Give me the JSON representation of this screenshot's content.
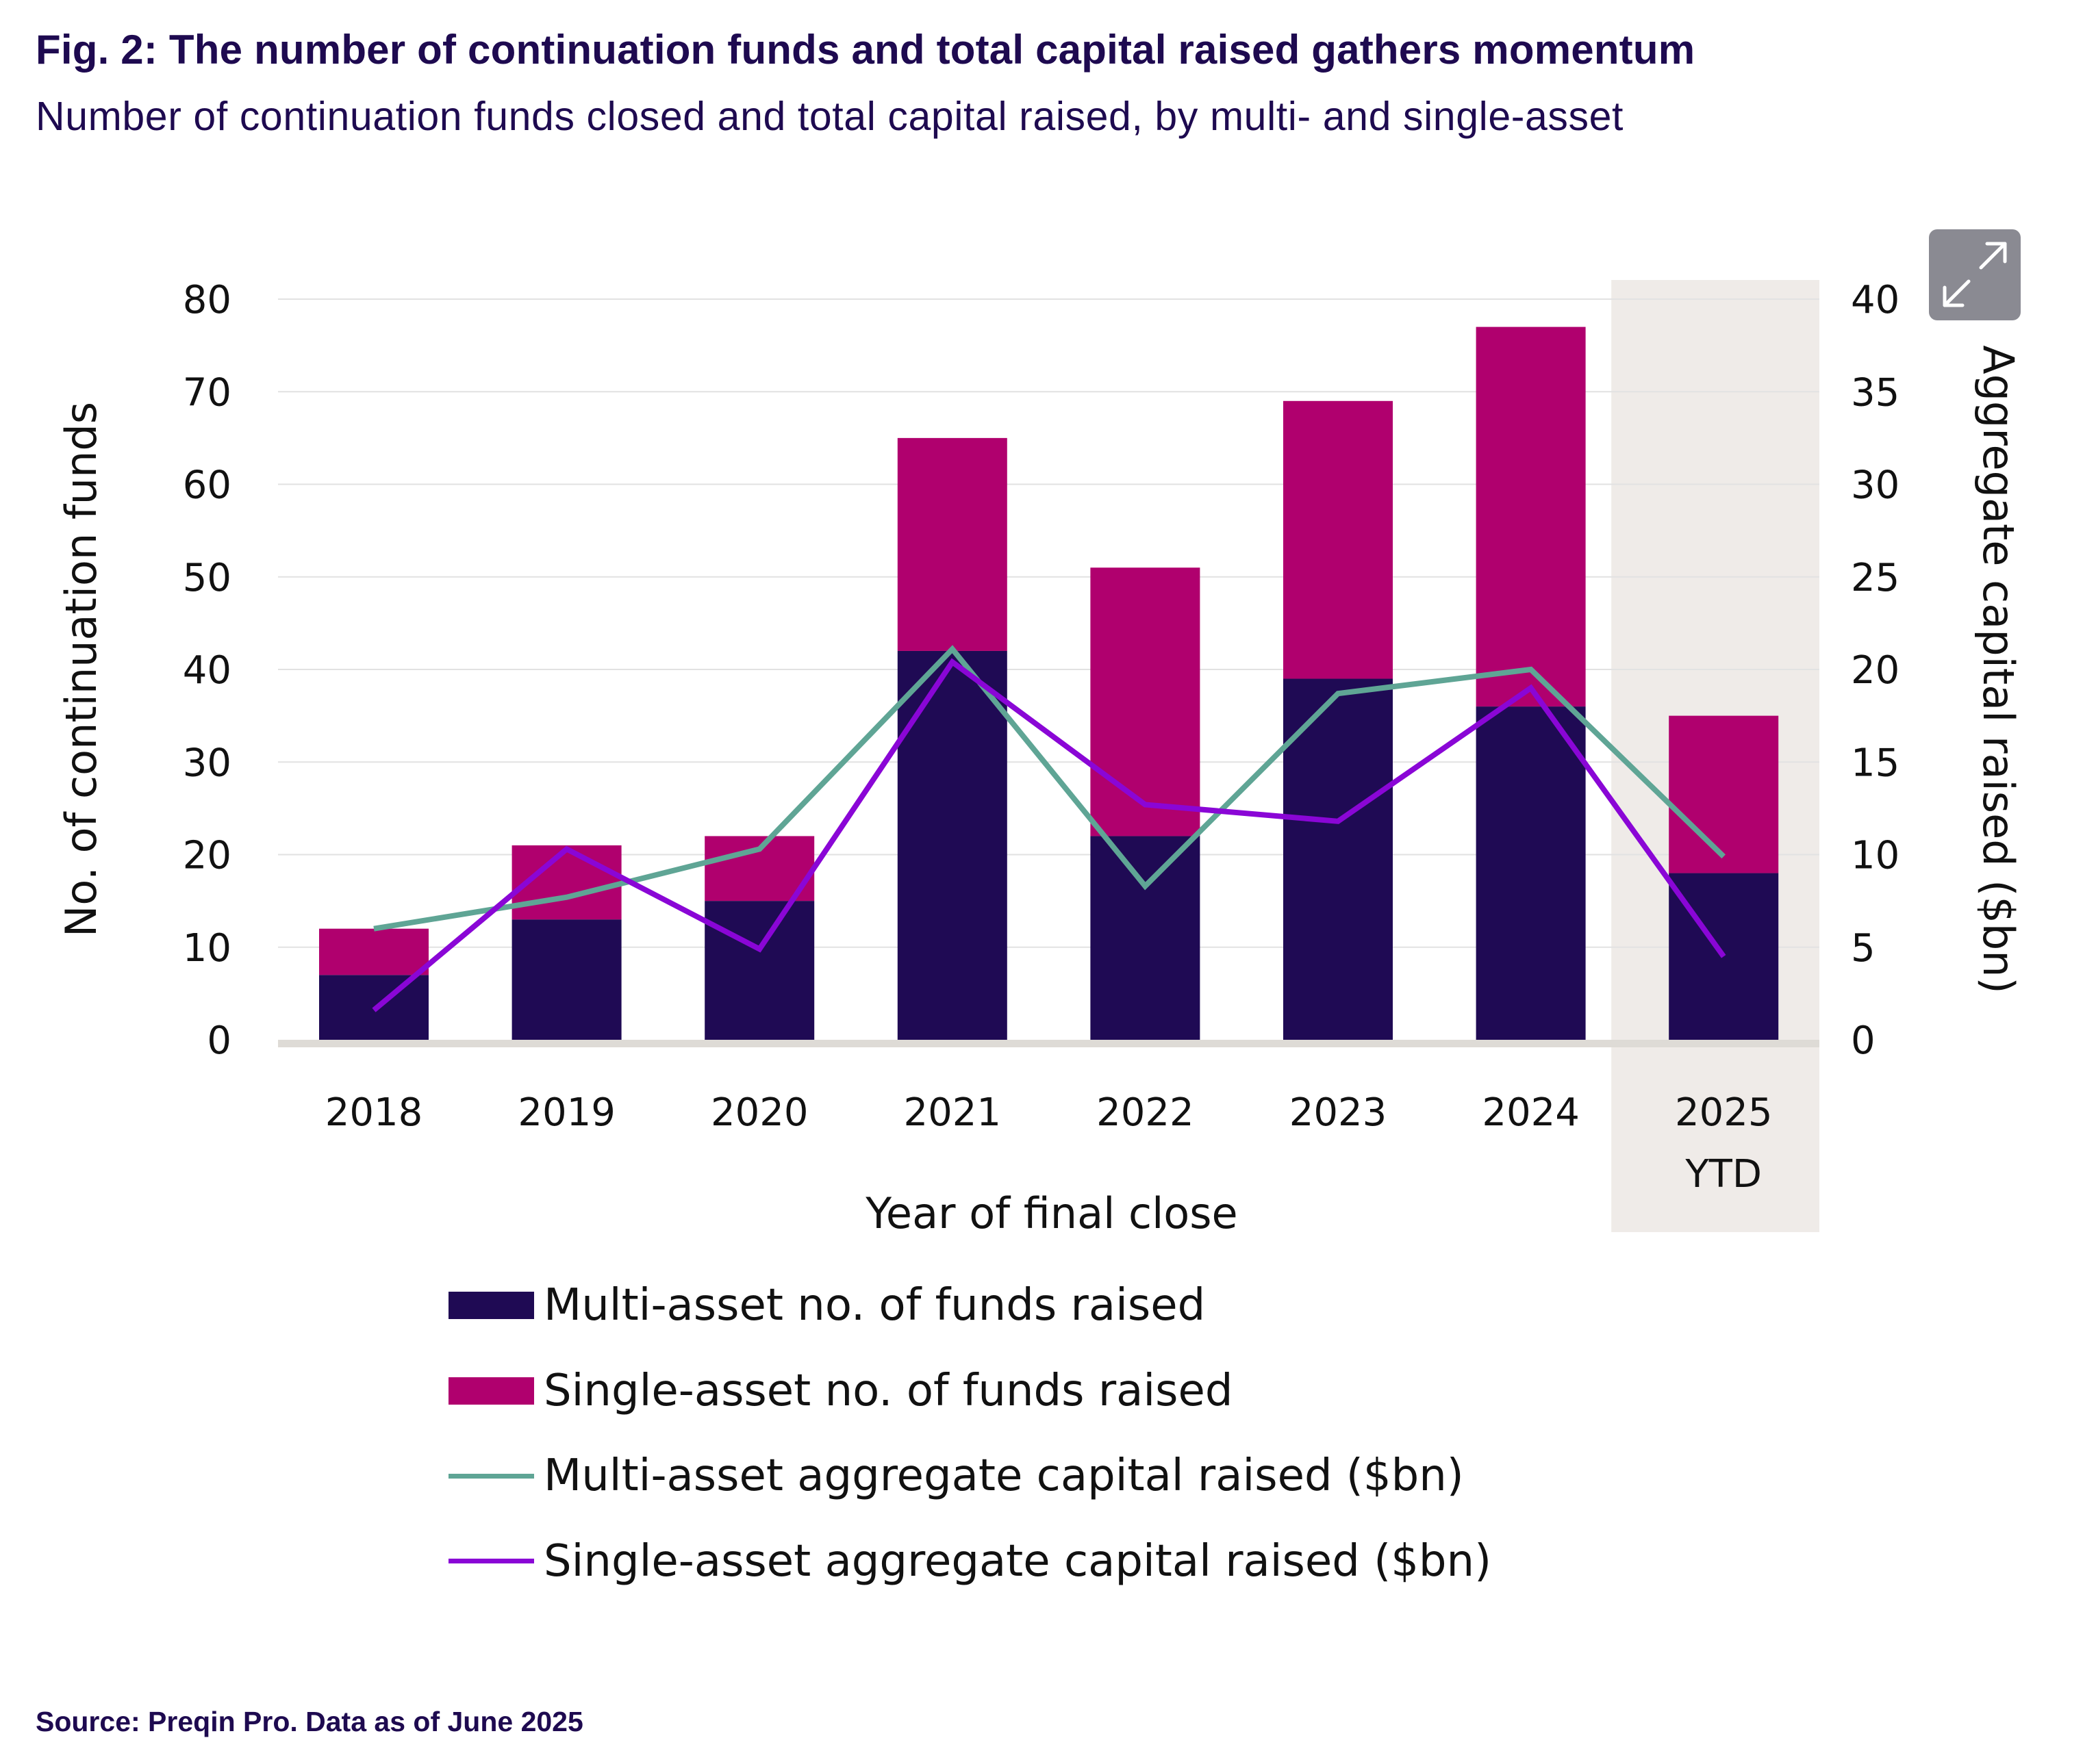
{
  "header": {
    "title": "Fig. 2: The number of continuation funds and total capital raised gathers momentum",
    "subtitle": "Number of continuation funds closed and total capital raised, by multi- and single-asset"
  },
  "footer": {
    "source": "Source: Preqin Pro. Data as of June 2025"
  },
  "controls": {
    "expand_icon": "expand-arrows-icon"
  },
  "colors": {
    "multi_bar": "#1f0a54",
    "single_bar": "#b0006e",
    "multi_line": "#5fa595",
    "single_line": "#8a06d6",
    "highlight_band": "#efebe8",
    "gridline": "#e2e2e2",
    "baseline": "#dedbd6",
    "text_dark": "#1e0a50"
  },
  "chart_data": {
    "type": "bar",
    "subtype": "stacked bar with line overlay (dual axis)",
    "title": "Fig. 2: The number of continuation funds and total capital raised gathers momentum",
    "subtitle": "Number of continuation funds closed and total capital raised, by multi- and single-asset",
    "xlabel": "Year of final close",
    "ylabel": "No. of continuation funds",
    "y2label": "Aggregate capital raised ($bn)",
    "categories": [
      [
        "2018"
      ],
      [
        "2019"
      ],
      [
        "2020"
      ],
      [
        "2021"
      ],
      [
        "2022"
      ],
      [
        "2023"
      ],
      [
        "2024"
      ],
      [
        "2025",
        "YTD"
      ]
    ],
    "highlighted_category": "2025 YTD",
    "ylim": [
      0,
      80
    ],
    "yticks": [
      0,
      10,
      20,
      30,
      40,
      50,
      60,
      70,
      80
    ],
    "y2lim": [
      0,
      40
    ],
    "y2ticks": [
      0,
      5,
      10,
      15,
      20,
      25,
      30,
      35,
      40
    ],
    "grid": true,
    "legend_position": "bottom",
    "series": [
      {
        "name": "Multi-asset no. of funds raised",
        "kind": "bar",
        "axis": "left",
        "stack": "funds",
        "values": [
          7,
          13,
          15,
          42,
          22,
          39,
          36,
          18
        ]
      },
      {
        "name": "Single-asset no. of funds raised",
        "kind": "bar",
        "axis": "left",
        "stack": "funds",
        "values": [
          5,
          8,
          7,
          23,
          29,
          30,
          41,
          17
        ]
      },
      {
        "name": "Multi-asset aggregate capital raised ($bn)",
        "kind": "line",
        "axis": "right",
        "values": [
          6.0,
          7.7,
          10.3,
          21.1,
          8.3,
          18.7,
          20.0,
          9.9
        ]
      },
      {
        "name": "Single-asset aggregate capital raised ($bn)",
        "kind": "line",
        "axis": "right",
        "values": [
          1.6,
          10.3,
          4.9,
          20.4,
          12.7,
          11.8,
          19.0,
          4.5
        ]
      }
    ]
  }
}
